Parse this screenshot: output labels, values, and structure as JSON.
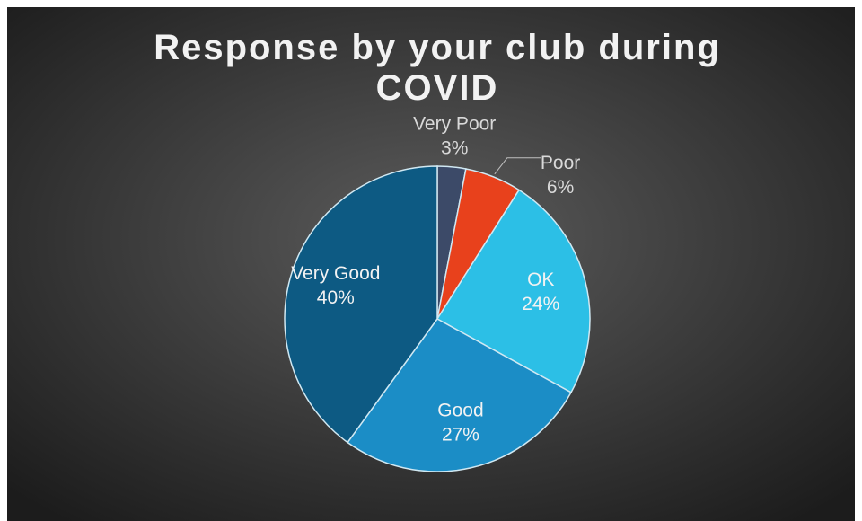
{
  "chart_data": {
    "type": "pie",
    "title": "Response by your club during COVID",
    "categories": [
      "Very Poor",
      "Poor",
      "OK",
      "Good",
      "Very Good"
    ],
    "values": [
      3,
      6,
      24,
      27,
      40
    ],
    "value_labels": [
      "3%",
      "6%",
      "24%",
      "27%",
      "40%"
    ],
    "colors": [
      "#3c4a68",
      "#e8411c",
      "#2cbfe6",
      "#1b8dc6",
      "#0d5a83"
    ]
  }
}
